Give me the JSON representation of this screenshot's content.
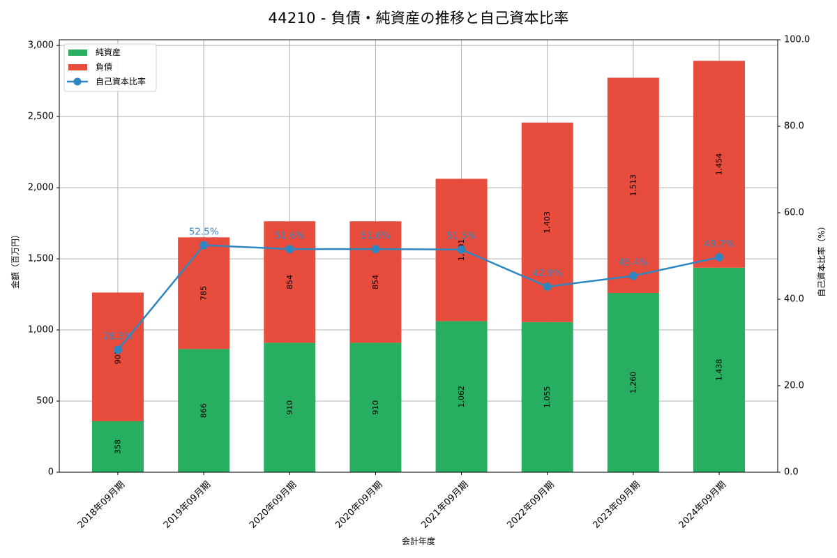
{
  "chart_data": {
    "type": "bar",
    "title": "44210 - 負債・純資産の推移と自己資本比率",
    "xlabel": "会計年度",
    "ylabel": "金額（百万円）",
    "y2label": "自己資本比率（%）",
    "categories": [
      "2018年09月期",
      "2019年09月期",
      "2020年09月期",
      "2020年09月期",
      "2021年09月期",
      "2022年09月期",
      "2023年09月期",
      "2024年09月期"
    ],
    "series": [
      {
        "name": "純資産",
        "type": "bar",
        "stacked": true,
        "color": "#27ae60",
        "values": [
          358,
          866,
          910,
          910,
          1062,
          1055,
          1260,
          1438
        ],
        "labels": [
          "358",
          "866",
          "910",
          "910",
          "1,062",
          "1,055",
          "1,260",
          "1,438"
        ]
      },
      {
        "name": "負債",
        "type": "bar",
        "stacked": true,
        "color": "#e74c3c",
        "values": [
          905,
          785,
          854,
          854,
          1001,
          1403,
          1513,
          1454
        ],
        "labels": [
          "905",
          "785",
          "854",
          "854",
          "1,001",
          "1,403",
          "1,513",
          "1,454"
        ]
      },
      {
        "name": "自己資本比率",
        "type": "line",
        "axis": "right",
        "color": "#2e86c1",
        "values": [
          28.3,
          52.5,
          51.6,
          51.6,
          51.5,
          42.9,
          45.4,
          49.7
        ],
        "labels": [
          "28.3%",
          "52.5%",
          "51.6%",
          "51.6%",
          "51.5%",
          "42.9%",
          "45.4%",
          "49.7%"
        ]
      }
    ],
    "ylim": [
      0,
      3040
    ],
    "y2lim": [
      0,
      100
    ],
    "yticks": [
      0,
      500,
      1000,
      1500,
      2000,
      2500,
      3000
    ],
    "ytick_labels": [
      "0",
      "500",
      "1,000",
      "1,500",
      "2,000",
      "2,500",
      "3,000"
    ],
    "y2ticks": [
      0,
      20,
      40,
      60,
      80,
      100
    ],
    "y2tick_labels": [
      "0.0",
      "20.0",
      "40.0",
      "60.0",
      "80.0",
      "100.0"
    ],
    "grid": true,
    "legend_position": "upper left"
  },
  "legend": {
    "items": [
      {
        "label": "純資産",
        "color": "#27ae60",
        "kind": "patch"
      },
      {
        "label": "負債",
        "color": "#e74c3c",
        "kind": "patch"
      },
      {
        "label": "自己資本比率",
        "color": "#2e86c1",
        "kind": "line-marker"
      }
    ]
  }
}
